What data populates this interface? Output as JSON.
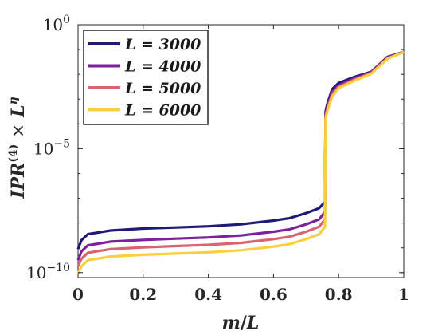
{
  "chart_data": {
    "type": "line",
    "xlabel": "m/L",
    "ylabel": "IPR^(4) × L^η",
    "ylabel_parts": {
      "base": "IPR",
      "sup": "(4)",
      "times": "×",
      "L": "L",
      "eta": "η"
    },
    "xlabel_parts": {
      "m": "m",
      "slash": "/",
      "L": "L"
    },
    "xlim": [
      0,
      1
    ],
    "ylim_log10": [
      -10.2,
      0
    ],
    "yscale": "log",
    "xticks": [
      0,
      0.2,
      0.4,
      0.6,
      0.8,
      1
    ],
    "xtick_labels": [
      "0",
      "0.2",
      "0.4",
      "0.6",
      "0.8",
      "1"
    ],
    "yticks": [
      {
        "value": 1e-10,
        "base": "10",
        "exp": "−10"
      },
      {
        "value": 1e-05,
        "base": "10",
        "exp": "−5"
      },
      {
        "value": 1,
        "base": "10",
        "exp": "0"
      }
    ],
    "legend_position": "top-left",
    "series": [
      {
        "name": "L = 3000",
        "color": "#1f1a78",
        "x": [
          0,
          0.01,
          0.03,
          0.1,
          0.2,
          0.3,
          0.4,
          0.5,
          0.6,
          0.65,
          0.7,
          0.74,
          0.758,
          0.76,
          0.765,
          0.78,
          0.8,
          0.85,
          0.9,
          0.95,
          1.0
        ],
        "log": [
          -9.05,
          -8.7,
          -8.45,
          -8.3,
          -8.22,
          -8.18,
          -8.13,
          -8.05,
          -7.9,
          -7.8,
          -7.6,
          -7.4,
          -7.15,
          -3.5,
          -3.2,
          -2.6,
          -2.35,
          -2.1,
          -1.9,
          -1.3,
          -1.1
        ]
      },
      {
        "name": "L = 4000",
        "color": "#7e1f9c",
        "x": [
          0,
          0.01,
          0.03,
          0.1,
          0.2,
          0.3,
          0.4,
          0.5,
          0.6,
          0.65,
          0.7,
          0.74,
          0.758,
          0.76,
          0.765,
          0.78,
          0.8,
          0.85,
          0.9,
          0.95,
          1.0
        ],
        "log": [
          -9.5,
          -9.15,
          -8.9,
          -8.75,
          -8.68,
          -8.63,
          -8.58,
          -8.5,
          -8.35,
          -8.25,
          -8.05,
          -7.85,
          -7.55,
          -3.6,
          -3.3,
          -2.7,
          -2.45,
          -2.15,
          -1.92,
          -1.32,
          -1.1
        ]
      },
      {
        "name": "L = 5000",
        "color": "#d9636e",
        "x": [
          0,
          0.01,
          0.03,
          0.1,
          0.2,
          0.3,
          0.4,
          0.5,
          0.6,
          0.65,
          0.7,
          0.74,
          0.758,
          0.76,
          0.765,
          0.78,
          0.8,
          0.85,
          0.9,
          0.95,
          1.0
        ],
        "log": [
          -9.75,
          -9.45,
          -9.2,
          -9.05,
          -8.98,
          -8.93,
          -8.88,
          -8.8,
          -8.65,
          -8.55,
          -8.35,
          -8.15,
          -7.85,
          -3.7,
          -3.4,
          -2.8,
          -2.5,
          -2.2,
          -1.95,
          -1.35,
          -1.1
        ]
      },
      {
        "name": "L = 6000",
        "color": "#f9cf3a",
        "x": [
          0,
          0.01,
          0.03,
          0.1,
          0.2,
          0.3,
          0.4,
          0.5,
          0.6,
          0.65,
          0.7,
          0.74,
          0.758,
          0.76,
          0.765,
          0.78,
          0.8,
          0.85,
          0.9,
          0.95,
          1.0
        ],
        "log": [
          -10.05,
          -9.75,
          -9.5,
          -9.35,
          -9.28,
          -9.23,
          -9.18,
          -9.1,
          -8.95,
          -8.85,
          -8.65,
          -8.45,
          -8.15,
          -3.8,
          -3.5,
          -2.9,
          -2.55,
          -2.25,
          -1.98,
          -1.37,
          -1.1
        ]
      }
    ]
  }
}
